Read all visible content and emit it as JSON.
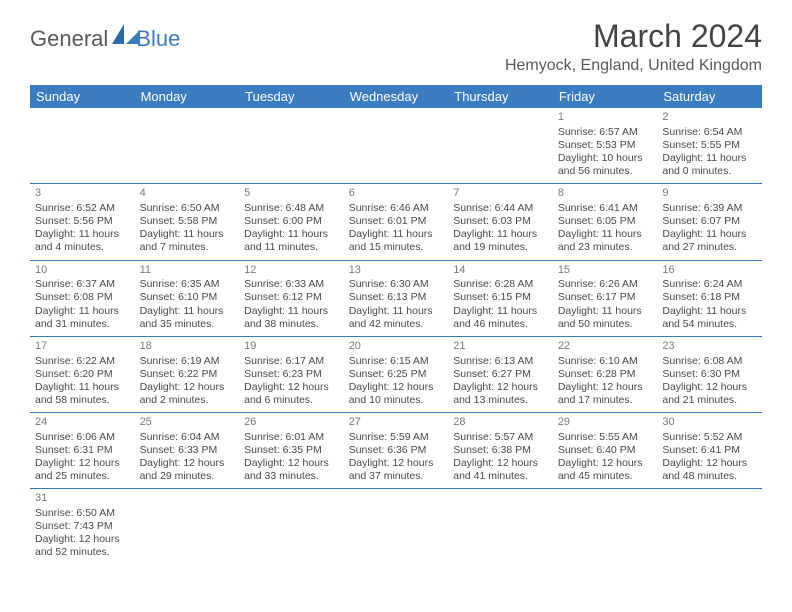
{
  "logo": {
    "general": "General",
    "blue": "Blue"
  },
  "title": "March 2024",
  "location": "Hemyock, England, United Kingdom",
  "colors": {
    "header_bg": "#3b7bbf",
    "header_text": "#ffffff",
    "body_text": "#4a4a4a",
    "rule": "#3b7bbf"
  },
  "daynames": [
    "Sunday",
    "Monday",
    "Tuesday",
    "Wednesday",
    "Thursday",
    "Friday",
    "Saturday"
  ],
  "weeks": [
    [
      null,
      null,
      null,
      null,
      null,
      {
        "n": "1",
        "sr": "Sunrise: 6:57 AM",
        "ss": "Sunset: 5:53 PM",
        "d1": "Daylight: 10 hours",
        "d2": "and 56 minutes."
      },
      {
        "n": "2",
        "sr": "Sunrise: 6:54 AM",
        "ss": "Sunset: 5:55 PM",
        "d1": "Daylight: 11 hours",
        "d2": "and 0 minutes."
      }
    ],
    [
      {
        "n": "3",
        "sr": "Sunrise: 6:52 AM",
        "ss": "Sunset: 5:56 PM",
        "d1": "Daylight: 11 hours",
        "d2": "and 4 minutes."
      },
      {
        "n": "4",
        "sr": "Sunrise: 6:50 AM",
        "ss": "Sunset: 5:58 PM",
        "d1": "Daylight: 11 hours",
        "d2": "and 7 minutes."
      },
      {
        "n": "5",
        "sr": "Sunrise: 6:48 AM",
        "ss": "Sunset: 6:00 PM",
        "d1": "Daylight: 11 hours",
        "d2": "and 11 minutes."
      },
      {
        "n": "6",
        "sr": "Sunrise: 6:46 AM",
        "ss": "Sunset: 6:01 PM",
        "d1": "Daylight: 11 hours",
        "d2": "and 15 minutes."
      },
      {
        "n": "7",
        "sr": "Sunrise: 6:44 AM",
        "ss": "Sunset: 6:03 PM",
        "d1": "Daylight: 11 hours",
        "d2": "and 19 minutes."
      },
      {
        "n": "8",
        "sr": "Sunrise: 6:41 AM",
        "ss": "Sunset: 6:05 PM",
        "d1": "Daylight: 11 hours",
        "d2": "and 23 minutes."
      },
      {
        "n": "9",
        "sr": "Sunrise: 6:39 AM",
        "ss": "Sunset: 6:07 PM",
        "d1": "Daylight: 11 hours",
        "d2": "and 27 minutes."
      }
    ],
    [
      {
        "n": "10",
        "sr": "Sunrise: 6:37 AM",
        "ss": "Sunset: 6:08 PM",
        "d1": "Daylight: 11 hours",
        "d2": "and 31 minutes."
      },
      {
        "n": "11",
        "sr": "Sunrise: 6:35 AM",
        "ss": "Sunset: 6:10 PM",
        "d1": "Daylight: 11 hours",
        "d2": "and 35 minutes."
      },
      {
        "n": "12",
        "sr": "Sunrise: 6:33 AM",
        "ss": "Sunset: 6:12 PM",
        "d1": "Daylight: 11 hours",
        "d2": "and 38 minutes."
      },
      {
        "n": "13",
        "sr": "Sunrise: 6:30 AM",
        "ss": "Sunset: 6:13 PM",
        "d1": "Daylight: 11 hours",
        "d2": "and 42 minutes."
      },
      {
        "n": "14",
        "sr": "Sunrise: 6:28 AM",
        "ss": "Sunset: 6:15 PM",
        "d1": "Daylight: 11 hours",
        "d2": "and 46 minutes."
      },
      {
        "n": "15",
        "sr": "Sunrise: 6:26 AM",
        "ss": "Sunset: 6:17 PM",
        "d1": "Daylight: 11 hours",
        "d2": "and 50 minutes."
      },
      {
        "n": "16",
        "sr": "Sunrise: 6:24 AM",
        "ss": "Sunset: 6:18 PM",
        "d1": "Daylight: 11 hours",
        "d2": "and 54 minutes."
      }
    ],
    [
      {
        "n": "17",
        "sr": "Sunrise: 6:22 AM",
        "ss": "Sunset: 6:20 PM",
        "d1": "Daylight: 11 hours",
        "d2": "and 58 minutes."
      },
      {
        "n": "18",
        "sr": "Sunrise: 6:19 AM",
        "ss": "Sunset: 6:22 PM",
        "d1": "Daylight: 12 hours",
        "d2": "and 2 minutes."
      },
      {
        "n": "19",
        "sr": "Sunrise: 6:17 AM",
        "ss": "Sunset: 6:23 PM",
        "d1": "Daylight: 12 hours",
        "d2": "and 6 minutes."
      },
      {
        "n": "20",
        "sr": "Sunrise: 6:15 AM",
        "ss": "Sunset: 6:25 PM",
        "d1": "Daylight: 12 hours",
        "d2": "and 10 minutes."
      },
      {
        "n": "21",
        "sr": "Sunrise: 6:13 AM",
        "ss": "Sunset: 6:27 PM",
        "d1": "Daylight: 12 hours",
        "d2": "and 13 minutes."
      },
      {
        "n": "22",
        "sr": "Sunrise: 6:10 AM",
        "ss": "Sunset: 6:28 PM",
        "d1": "Daylight: 12 hours",
        "d2": "and 17 minutes."
      },
      {
        "n": "23",
        "sr": "Sunrise: 6:08 AM",
        "ss": "Sunset: 6:30 PM",
        "d1": "Daylight: 12 hours",
        "d2": "and 21 minutes."
      }
    ],
    [
      {
        "n": "24",
        "sr": "Sunrise: 6:06 AM",
        "ss": "Sunset: 6:31 PM",
        "d1": "Daylight: 12 hours",
        "d2": "and 25 minutes."
      },
      {
        "n": "25",
        "sr": "Sunrise: 6:04 AM",
        "ss": "Sunset: 6:33 PM",
        "d1": "Daylight: 12 hours",
        "d2": "and 29 minutes."
      },
      {
        "n": "26",
        "sr": "Sunrise: 6:01 AM",
        "ss": "Sunset: 6:35 PM",
        "d1": "Daylight: 12 hours",
        "d2": "and 33 minutes."
      },
      {
        "n": "27",
        "sr": "Sunrise: 5:59 AM",
        "ss": "Sunset: 6:36 PM",
        "d1": "Daylight: 12 hours",
        "d2": "and 37 minutes."
      },
      {
        "n": "28",
        "sr": "Sunrise: 5:57 AM",
        "ss": "Sunset: 6:38 PM",
        "d1": "Daylight: 12 hours",
        "d2": "and 41 minutes."
      },
      {
        "n": "29",
        "sr": "Sunrise: 5:55 AM",
        "ss": "Sunset: 6:40 PM",
        "d1": "Daylight: 12 hours",
        "d2": "and 45 minutes."
      },
      {
        "n": "30",
        "sr": "Sunrise: 5:52 AM",
        "ss": "Sunset: 6:41 PM",
        "d1": "Daylight: 12 hours",
        "d2": "and 48 minutes."
      }
    ],
    [
      {
        "n": "31",
        "sr": "Sunrise: 6:50 AM",
        "ss": "Sunset: 7:43 PM",
        "d1": "Daylight: 12 hours",
        "d2": "and 52 minutes."
      },
      null,
      null,
      null,
      null,
      null,
      null
    ]
  ]
}
